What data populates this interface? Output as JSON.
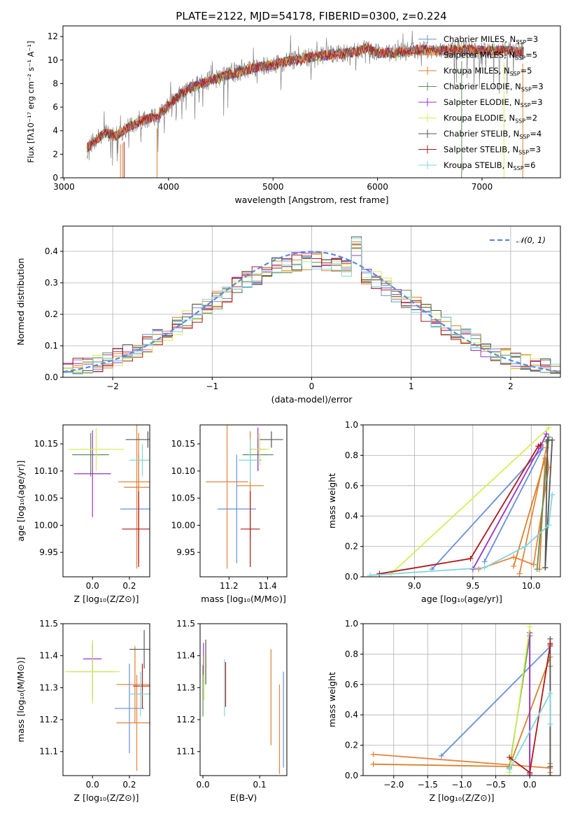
{
  "figure_title": "PLATE=2122, MJD=54178, FIBERID=0300, z=0.224",
  "models": [
    {
      "name": "Chabrier MILES",
      "nssp": "3",
      "color": "#6a8fd6"
    },
    {
      "name": "Salpeter MILES",
      "nssp": "5",
      "color": "#e8833a"
    },
    {
      "name": "Kroupa MILES",
      "nssp": "5",
      "color": "#d9822b"
    },
    {
      "name": "Chabrier ELODIE",
      "nssp": "3",
      "color": "#5c8f5c"
    },
    {
      "name": "Salpeter ELODIE",
      "nssp": "3",
      "color": "#9b30c9"
    },
    {
      "name": "Kroupa ELODIE",
      "nssp": "2",
      "color": "#d4ee5a"
    },
    {
      "name": "Chabrier STELIB",
      "nssp": "4",
      "color": "#555555"
    },
    {
      "name": "Salpeter STELIB",
      "nssp": "3",
      "color": "#b01818"
    },
    {
      "name": "Kroupa STELIB",
      "nssp": "6",
      "color": "#7fd6dc"
    }
  ],
  "chart_data": [
    {
      "id": "spectrum",
      "type": "line",
      "xlabel": "wavelength [Angstrom, rest frame]",
      "ylabel": "Flux [fλ10⁻¹⁷ erg cm⁻² s⁻¹ A⁻¹]",
      "xlim": [
        2990,
        7750
      ],
      "ylim": [
        0,
        12.9
      ],
      "xticks": [
        "3000",
        "4000",
        "5000",
        "6000",
        "7000"
      ],
      "xtick_values": [
        3000,
        4000,
        5000,
        6000,
        7000
      ],
      "yticks": [
        "0",
        "2",
        "4",
        "6",
        "8",
        "10",
        "12"
      ],
      "ytick_values": [
        0,
        2,
        4,
        6,
        8,
        10,
        12
      ],
      "continuum_model": {
        "x": [
          3220,
          3300,
          3400,
          3500,
          3600,
          3700,
          3800,
          3900,
          4000,
          4100,
          4200,
          4400,
          4600,
          4800,
          5000,
          5200,
          5400,
          5600,
          5800,
          5900,
          6000,
          6200,
          6400,
          6600,
          6800,
          7000,
          7200,
          7400
        ],
        "y": [
          2.5,
          3.2,
          3.8,
          3.6,
          4.2,
          4.7,
          5.0,
          5.2,
          6.2,
          7.0,
          7.6,
          8.3,
          8.8,
          9.3,
          9.6,
          10.0,
          10.3,
          10.5,
          10.7,
          11.0,
          10.6,
          10.6,
          10.9,
          10.8,
          10.9,
          10.8,
          10.8,
          10.7
        ]
      },
      "legend_position": "upper right"
    },
    {
      "id": "residuals",
      "type": "histogram",
      "xlabel": "(data-model)/error",
      "ylabel": "Normed distribution",
      "xlim": [
        -2.5,
        2.5
      ],
      "ylim": [
        0,
        0.48
      ],
      "xticks": [
        "−2",
        "−1",
        "0",
        "1",
        "2"
      ],
      "xtick_values": [
        -2,
        -1,
        0,
        1,
        2
      ],
      "yticks": [
        "0.0",
        "0.1",
        "0.2",
        "0.3",
        "0.4"
      ],
      "ytick_values": [
        0,
        0.1,
        0.2,
        0.3,
        0.4
      ],
      "bin_width": 0.1,
      "reference_curve": {
        "label": "𝒩(0, 1)",
        "mean": 0,
        "sigma": 1
      },
      "legend_position": "upper right",
      "grid": true
    },
    {
      "id": "age-vs-Z",
      "type": "errorbar",
      "xlabel": "Z [log₁₀(Z/Z⊙)]",
      "ylabel": "age  [log₁₀(age/yr)]",
      "xlim": [
        -0.16,
        0.31
      ],
      "ylim": [
        9.905,
        10.185
      ],
      "xticks": [
        "0.0",
        "0.2"
      ],
      "xtick_values": [
        0,
        0.2
      ],
      "yticks": [
        "9.95",
        "10.00",
        "10.05",
        "10.10",
        "10.15"
      ],
      "ytick_values": [
        9.95,
        10.0,
        10.05,
        10.1,
        10.15
      ],
      "points": [
        {
          "x": 0.25,
          "y": 10.03,
          "xerr": 0.1,
          "yerr": 0.1
        },
        {
          "x": 0.24,
          "y": 10.08,
          "xerr": 0.1,
          "yerr": 0.16
        },
        {
          "x": 0.25,
          "y": 10.07,
          "xerr": 0.08,
          "yerr": 0.1
        },
        {
          "x": -0.01,
          "y": 10.13,
          "xerr": 0.1,
          "yerr": 0.04
        },
        {
          "x": 0.0,
          "y": 10.095,
          "xerr": 0.1,
          "yerr": 0.08
        },
        {
          "x": 0.02,
          "y": 10.14,
          "xerr": 0.15,
          "yerr": 0.04
        },
        {
          "x": 0.3,
          "y": 10.158,
          "xerr": 0.12,
          "yerr": 0.015
        },
        {
          "x": 0.25,
          "y": 9.993,
          "xerr": 0.09,
          "yerr": 0.07
        },
        {
          "x": 0.27,
          "y": 10.12,
          "xerr": 0.07,
          "yerr": 0.03
        }
      ]
    },
    {
      "id": "age-vs-mass",
      "type": "errorbar",
      "xlabel": "mass [log₁₀(M/M⊙)]",
      "ylabel": "",
      "xlim": [
        11.05,
        11.5
      ],
      "ylim": [
        9.905,
        10.185
      ],
      "xticks": [
        "11.2",
        "11.4"
      ],
      "xtick_values": [
        11.2,
        11.4
      ],
      "yticks": [
        "9.95",
        "10.00",
        "10.05",
        "10.10",
        "10.15"
      ],
      "ytick_values": [
        9.95,
        10.0,
        10.05,
        10.1,
        10.15
      ],
      "points": [
        {
          "x": 11.24,
          "y": 10.03,
          "xerr": 0.1,
          "yerr": 0.1
        },
        {
          "x": 11.19,
          "y": 10.08,
          "xerr": 0.11,
          "yerr": 0.16
        },
        {
          "x": 11.31,
          "y": 10.073,
          "xerr": 0.07,
          "yerr": 0.1
        },
        {
          "x": 11.35,
          "y": 10.13,
          "xerr": 0.08,
          "yerr": 0.03
        },
        {
          "x": 11.35,
          "y": 10.14,
          "xerr": 0.04,
          "yerr": 0.04
        },
        {
          "x": 11.36,
          "y": 10.14,
          "xerr": 0.05,
          "yerr": 0.03
        },
        {
          "x": 11.42,
          "y": 10.158,
          "xerr": 0.06,
          "yerr": 0.015
        },
        {
          "x": 11.31,
          "y": 9.993,
          "xerr": 0.05,
          "yerr": 0.07
        },
        {
          "x": 11.31,
          "y": 10.12,
          "xerr": 0.06,
          "yerr": 0.04
        }
      ]
    },
    {
      "id": "weight-vs-age",
      "type": "line",
      "xlabel": "age  [log₁₀(age/yr)]",
      "ylabel": "mass weight",
      "xlim": [
        8.56,
        10.25
      ],
      "ylim": [
        0,
        1
      ],
      "xticks": [
        "9.0",
        "9.5",
        "10.0"
      ],
      "xtick_values": [
        9.0,
        9.5,
        10.0
      ],
      "yticks": [
        "0.0",
        "0.2",
        "0.4",
        "0.6",
        "0.8",
        "1.0"
      ],
      "ytick_values": [
        0,
        0.2,
        0.4,
        0.6,
        0.8,
        1.0
      ],
      "grid": true,
      "series": [
        {
          "x": [
            9.6,
            10.1,
            9.15
          ],
          "y": [
            0.1,
            0.85,
            0.05
          ]
        },
        {
          "x": [
            9.55,
            9.85,
            10.02,
            10.15,
            10.13,
            9.9
          ],
          "y": [
            0.05,
            0.13,
            0.08,
            0.72,
            0.85,
            0.02
          ]
        },
        {
          "x": [
            9.85,
            10.12,
            10.07
          ],
          "y": [
            0.07,
            0.78,
            0.05
          ]
        },
        {
          "x": [
            10.05,
            10.15,
            10.13
          ],
          "y": [
            0.05,
            0.92,
            0.89
          ]
        },
        {
          "x": [
            9.5,
            10.08,
            10.13
          ],
          "y": [
            0.05,
            0.86,
            0.94
          ]
        },
        {
          "x": [
            8.8,
            10.15
          ],
          "y": [
            0.02,
            0.98
          ]
        },
        {
          "x": [
            10.12,
            10.18,
            10.14,
            10.12
          ],
          "y": [
            0.06,
            0.9,
            0.9,
            0.06
          ]
        },
        {
          "x": [
            8.7,
            9.48,
            10.06,
            10.08
          ],
          "y": [
            0.02,
            0.12,
            0.86,
            0.87
          ]
        },
        {
          "x": [
            8.62,
            9.6,
            9.95,
            10.15,
            10.18,
            10.18
          ],
          "y": [
            0.01,
            0.06,
            0.2,
            0.34,
            0.54,
            0.54
          ]
        }
      ]
    },
    {
      "id": "mass-vs-Z",
      "type": "errorbar",
      "xlabel": "Z [log₁₀(Z/Z⊙)]",
      "ylabel": "mass [log₁₀(M/M⊙)]",
      "xlim": [
        -0.16,
        0.31
      ],
      "ylim": [
        11.025,
        11.5
      ],
      "xticks": [
        "0.0",
        "0.2"
      ],
      "xtick_values": [
        0,
        0.2
      ],
      "yticks": [
        "11.1",
        "11.2",
        "11.3",
        "11.4",
        "11.5"
      ],
      "ytick_values": [
        11.1,
        11.2,
        11.3,
        11.4,
        11.5
      ],
      "points": [
        {
          "x": 0.2,
          "y": 11.235,
          "xerr": 0.08,
          "yerr": 0.14
        },
        {
          "x": 0.24,
          "y": 11.19,
          "xerr": 0.11,
          "yerr": 0.15
        },
        {
          "x": 0.23,
          "y": 11.31,
          "xerr": 0.1,
          "yerr": 0.12
        },
        {
          "x": 0.0,
          "y": 11.35,
          "xerr": 0.12,
          "yerr": 0.09
        },
        {
          "x": 0.0,
          "y": 11.39,
          "xerr": 0.05,
          "yerr": 0.04
        },
        {
          "x": 0.0,
          "y": 11.35,
          "xerr": 0.15,
          "yerr": 0.1
        },
        {
          "x": 0.28,
          "y": 11.42,
          "xerr": 0.08,
          "yerr": 0.06
        },
        {
          "x": 0.27,
          "y": 11.305,
          "xerr": 0.05,
          "yerr": 0.07
        },
        {
          "x": 0.26,
          "y": 11.28,
          "xerr": 0.06,
          "yerr": 0.07
        }
      ]
    },
    {
      "id": "mass-vs-ebv",
      "type": "errorbar",
      "xlabel": "E(B-V)",
      "ylabel": "",
      "xlim": [
        -0.005,
        0.148
      ],
      "ylim": [
        11.025,
        11.5
      ],
      "xticks": [
        "0.0",
        "0.1"
      ],
      "xtick_values": [
        0.0,
        0.1
      ],
      "yticks": [
        "11.1",
        "11.2",
        "11.3",
        "11.4",
        "11.5"
      ],
      "ytick_values": [
        11.1,
        11.2,
        11.3,
        11.4,
        11.5
      ],
      "points": [
        {
          "x": 0.142,
          "y": 11.2,
          "xerr": 0,
          "yerr": 0.15
        },
        {
          "x": 0.135,
          "y": 11.17,
          "xerr": 0,
          "yerr": 0.14
        },
        {
          "x": 0.12,
          "y": 11.27,
          "xerr": 0,
          "yerr": 0.15
        },
        {
          "x": 0.0,
          "y": 11.29,
          "xerr": 0,
          "yerr": 0.08
        },
        {
          "x": 0.001,
          "y": 11.39,
          "xerr": 0,
          "yerr": 0.05
        },
        {
          "x": 0.002,
          "y": 11.33,
          "xerr": 0,
          "yerr": 0.07
        },
        {
          "x": 0.005,
          "y": 11.38,
          "xerr": 0,
          "yerr": 0.07
        },
        {
          "x": 0.04,
          "y": 11.31,
          "xerr": 0,
          "yerr": 0.07
        },
        {
          "x": 0.038,
          "y": 11.3,
          "xerr": 0,
          "yerr": 0.09
        }
      ]
    },
    {
      "id": "weight-vs-Z",
      "type": "line",
      "xlabel": "Z [log₁₀(Z/Z⊙)]",
      "ylabel": "mass weight",
      "xlim": [
        -2.45,
        0.45
      ],
      "ylim": [
        0,
        1
      ],
      "xticks": [
        "−2.0",
        "−1.5",
        "−1.0",
        "−0.5",
        "0.0"
      ],
      "xtick_values": [
        -2.0,
        -1.5,
        -1.0,
        -0.5,
        0.0
      ],
      "yticks": [
        "0.0",
        "0.2",
        "0.4",
        "0.6",
        "0.8",
        "1.0"
      ],
      "ytick_values": [
        0,
        0.2,
        0.4,
        0.6,
        0.8,
        1.0
      ],
      "grid": true,
      "series": [
        {
          "x": [
            -1.3,
            0.3
          ],
          "y": [
            0.13,
            0.85
          ]
        },
        {
          "x": [
            -2.3,
            0.3,
            0.3,
            0.3,
            0.3
          ],
          "y": [
            0.14,
            0.05,
            0.72,
            0.02,
            0.08
          ]
        },
        {
          "x": [
            -2.3,
            -0.3,
            0.3
          ],
          "y": [
            0.075,
            0.06,
            0.78
          ]
        },
        {
          "x": [
            -0.3,
            0.0,
            0.0
          ],
          "y": [
            0.05,
            0.92,
            0.01
          ]
        },
        {
          "x": [
            0.0,
            0.0,
            0.0
          ],
          "y": [
            0.0,
            0.94,
            0.01
          ]
        },
        {
          "x": [
            -0.3,
            0.0
          ],
          "y": [
            0.02,
            0.98
          ]
        },
        {
          "x": [
            0.3,
            0.3,
            0.3
          ],
          "y": [
            0.0,
            0.9,
            0.06
          ]
        },
        {
          "x": [
            -0.3,
            0.0,
            0.3,
            0.3
          ],
          "y": [
            0.12,
            0.02,
            0.86,
            0.87
          ]
        },
        {
          "x": [
            -0.3,
            0.3,
            0.3
          ],
          "y": [
            0.04,
            0.54,
            0.34
          ]
        }
      ]
    }
  ]
}
